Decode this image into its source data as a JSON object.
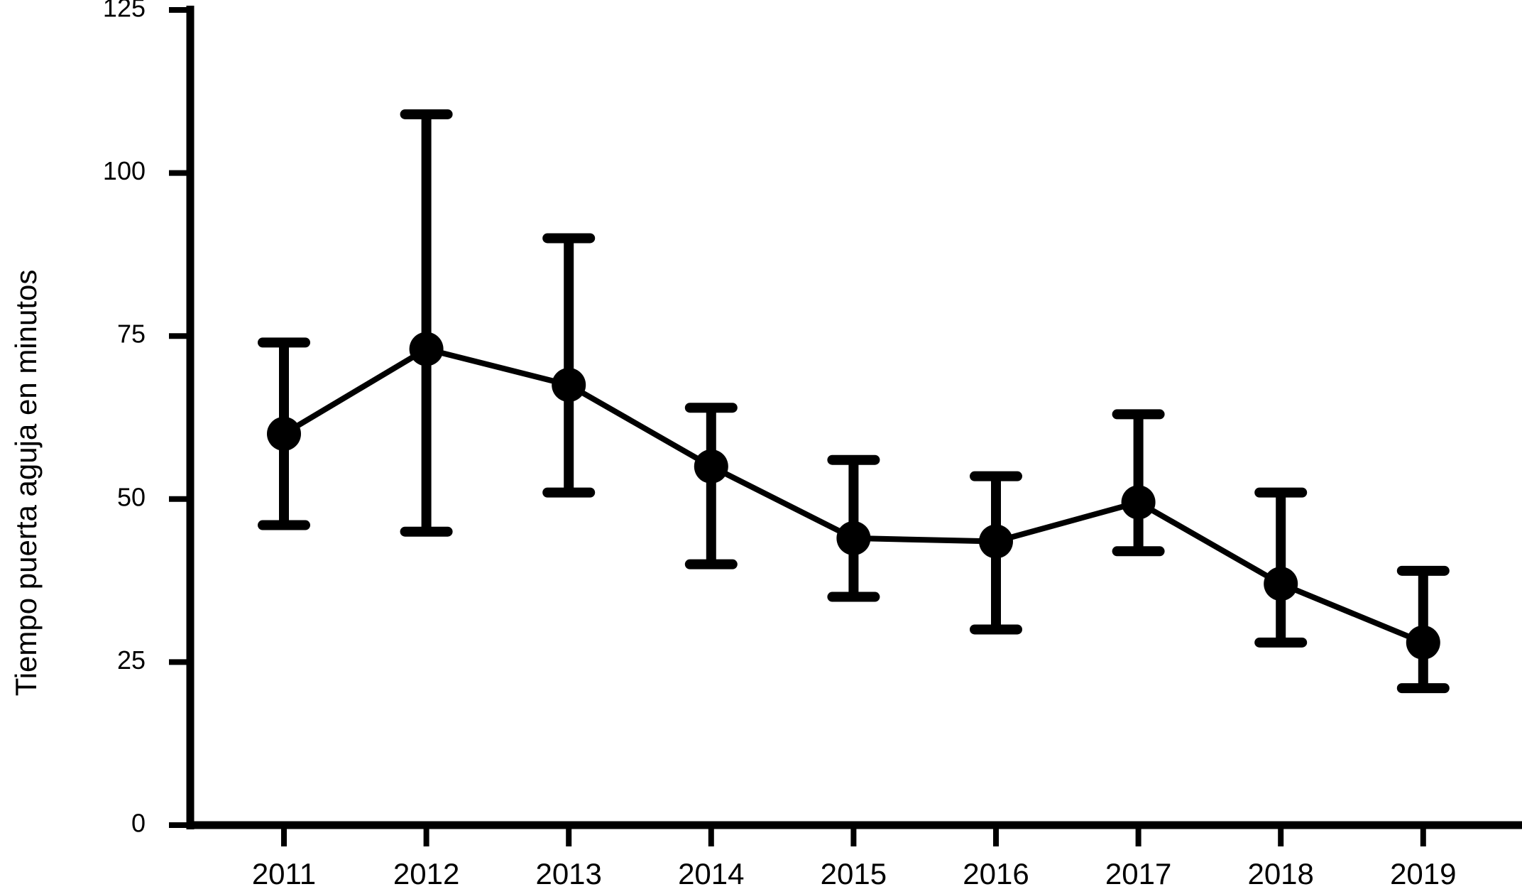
{
  "chart_data": {
    "type": "errorbar-line",
    "ylabel": "Tiempo puerta aguja en minutos",
    "categories": [
      "2011",
      "2012",
      "2013",
      "2014",
      "2015",
      "2016",
      "2017",
      "2018",
      "2019"
    ],
    "series": [
      {
        "color": "#000000",
        "values": [
          60,
          73,
          67.5,
          55,
          44,
          43.5,
          49.5,
          37,
          28
        ],
        "upper": [
          74,
          109,
          90,
          64,
          56,
          53.5,
          63,
          51,
          39
        ],
        "lower": [
          46,
          45,
          51,
          40,
          35,
          30,
          42,
          28,
          21
        ]
      }
    ],
    "ylim": [
      0,
      125
    ],
    "yticks": [
      0,
      25,
      50,
      75,
      100,
      125
    ]
  }
}
